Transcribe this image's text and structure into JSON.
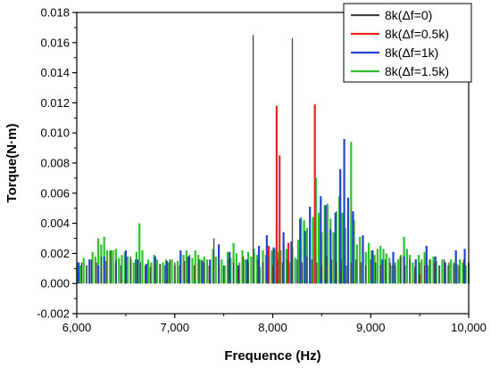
{
  "chart_data": {
    "type": "bar",
    "title": "",
    "xlabel": "Frequence (Hz)",
    "ylabel": "Torque(N·m)",
    "xlim": [
      6000,
      10000
    ],
    "ylim": [
      -0.002,
      0.018
    ],
    "x_ticks": [
      6000,
      7000,
      8000,
      9000,
      10000
    ],
    "x_tick_labels": [
      "6,000",
      "7,000",
      "8,000",
      "9,000",
      "10,000"
    ],
    "y_ticks": [
      -0.002,
      0,
      0.002,
      0.004,
      0.006,
      0.008,
      0.01,
      0.012,
      0.014,
      0.016,
      0.018
    ],
    "y_tick_labels": [
      "-0.002",
      "0.000",
      "0.002",
      "0.004",
      "0.006",
      "0.008",
      "0.010",
      "0.012",
      "0.014",
      "0.016",
      "0.018"
    ],
    "grid": false,
    "legend_position": "top-right",
    "series": [
      {
        "name": "8k(Δf=0)",
        "color": "#444444",
        "x": [
          6000,
          6050,
          6100,
          6150,
          6200,
          6250,
          6300,
          6350,
          6400,
          6450,
          6500,
          6550,
          6600,
          6650,
          6700,
          6750,
          6800,
          6850,
          6900,
          6950,
          7000,
          7050,
          7100,
          7150,
          7200,
          7250,
          7300,
          7350,
          7400,
          7450,
          7500,
          7550,
          7600,
          7650,
          7700,
          7750,
          7800,
          7850,
          7900,
          7950,
          8000,
          8050,
          8100,
          8150,
          8200,
          8250,
          8300,
          8350,
          8400,
          8450,
          8500,
          8550,
          8600,
          8650,
          8700,
          8750,
          8800,
          8850,
          8900,
          8950,
          9000,
          9050,
          9100,
          9150,
          9200,
          9250,
          9300,
          9350,
          9400,
          9450,
          9500,
          9550,
          9600,
          9650,
          9700,
          9750,
          9800,
          9850,
          9900,
          9950,
          10000
        ],
        "values": [
          0.0012,
          0.0014,
          0.0012,
          0.0016,
          0.0014,
          0.0018,
          0.0015,
          0.0022,
          0.0016,
          0.0012,
          0.0014,
          0.0018,
          0.0016,
          0.0014,
          0.0012,
          0.0011,
          0.0014,
          0.0013,
          0.0012,
          0.0016,
          0.0014,
          0.0012,
          0.0015,
          0.0018,
          0.0012,
          0.0016,
          0.0014,
          0.0012,
          0.003,
          0.0014,
          0.0012,
          0.0016,
          0.0014,
          0.0012,
          0.0018,
          0.0014,
          0.0165,
          0.0016,
          0.0014,
          0.0018,
          0.0012,
          0.0016,
          0.0014,
          0.0016,
          0.0163,
          0.0016,
          0.0014,
          0.0018,
          0.0016,
          0.0014,
          0.0012,
          0.0018,
          0.0016,
          0.0014,
          0.0016,
          0.0012,
          0.0014,
          0.0016,
          0.0014,
          0.0012,
          0.0016,
          0.0014,
          0.0012,
          0.0016,
          0.0014,
          0.0012,
          0.0018,
          0.0012,
          0.0016,
          0.0011,
          0.0014,
          0.0012,
          0.0016,
          0.0014,
          0.0012,
          0.0016,
          0.0014,
          0.0013,
          0.0012,
          0.0016,
          0.0014
        ]
      },
      {
        "name": "8k(Δf=0.5k)",
        "color": "#ee2222",
        "x": [
          7960,
          8040,
          8070,
          8160,
          8430,
          9500
        ],
        "values": [
          0.0025,
          0.0118,
          0.0085,
          0.0027,
          0.0119,
          0.0006
        ]
      },
      {
        "name": "8k(Δf=1k)",
        "color": "#2244cc",
        "x": [
          6020,
          6130,
          6220,
          6280,
          6400,
          6500,
          6620,
          6710,
          6800,
          6920,
          7060,
          7140,
          7280,
          7360,
          7450,
          7560,
          7650,
          7740,
          7860,
          7940,
          8010,
          8110,
          8190,
          8280,
          8330,
          8380,
          8490,
          8540,
          8590,
          8640,
          8690,
          8730,
          8770,
          8820,
          8920,
          9020,
          9120,
          9230,
          9340,
          9460,
          9570,
          9660,
          9760,
          9870,
          9960
        ],
        "values": [
          0.0014,
          0.0016,
          0.0012,
          0.0018,
          0.0014,
          0.0022,
          0.0016,
          0.0013,
          0.0018,
          0.0015,
          0.0022,
          0.0018,
          0.0015,
          0.0016,
          0.0026,
          0.0021,
          0.0012,
          0.0016,
          0.0025,
          0.0032,
          0.0024,
          0.0034,
          0.0028,
          0.0043,
          0.0035,
          0.0051,
          0.0058,
          0.0052,
          0.0036,
          0.0047,
          0.0076,
          0.0096,
          0.0057,
          0.0048,
          0.0032,
          0.0022,
          0.0016,
          0.0021,
          0.0018,
          0.0016,
          0.0025,
          0.0018,
          0.0014,
          0.0022,
          0.0023
        ]
      },
      {
        "name": "8k(Δf=1.5k)",
        "color": "#2ec12e",
        "x": [
          6010,
          6040,
          6070,
          6100,
          6130,
          6160,
          6190,
          6220,
          6250,
          6280,
          6310,
          6340,
          6370,
          6400,
          6430,
          6460,
          6490,
          6520,
          6550,
          6580,
          6610,
          6640,
          6670,
          6700,
          6730,
          6760,
          6790,
          6820,
          6850,
          6880,
          6910,
          6940,
          6970,
          7000,
          7030,
          7060,
          7090,
          7120,
          7150,
          7180,
          7210,
          7240,
          7270,
          7300,
          7330,
          7360,
          7390,
          7420,
          7450,
          7480,
          7510,
          7540,
          7570,
          7600,
          7630,
          7660,
          7690,
          7720,
          7750,
          7780,
          7810,
          7840,
          7870,
          7900,
          7930,
          7960,
          7990,
          8020,
          8050,
          8080,
          8110,
          8140,
          8170,
          8200,
          8230,
          8260,
          8290,
          8320,
          8350,
          8380,
          8410,
          8440,
          8470,
          8500,
          8530,
          8560,
          8590,
          8620,
          8650,
          8680,
          8710,
          8740,
          8770,
          8800,
          8830,
          8860,
          8890,
          8920,
          8950,
          8980,
          9010,
          9040,
          9070,
          9100,
          9130,
          9160,
          9190,
          9220,
          9250,
          9280,
          9310,
          9340,
          9370,
          9400,
          9430,
          9460,
          9490,
          9520,
          9550,
          9580,
          9610,
          9640,
          9670,
          9700,
          9730,
          9760,
          9790,
          9820,
          9850,
          9880,
          9910,
          9940,
          9970,
          10000
        ],
        "values": [
          0.0014,
          0.0012,
          0.0017,
          0.0012,
          0.0016,
          0.0021,
          0.0018,
          0.003,
          0.0026,
          0.0031,
          0.0022,
          0.0022,
          0.0022,
          0.0023,
          0.0017,
          0.0019,
          0.0021,
          0.0018,
          0.0016,
          0.0014,
          0.0021,
          0.004,
          0.0022,
          0.0012,
          0.0016,
          0.0014,
          0.0019,
          0.0016,
          0.0013,
          0.0014,
          0.0016,
          0.0014,
          0.0016,
          0.0012,
          0.0015,
          0.0017,
          0.0019,
          0.0022,
          0.0019,
          0.0017,
          0.0022,
          0.0019,
          0.0016,
          0.0018,
          0.0016,
          0.0012,
          0.0023,
          0.0018,
          0.0014,
          0.0016,
          0.0012,
          0.0021,
          0.0017,
          0.0027,
          0.002,
          0.0014,
          0.0022,
          0.0016,
          0.0021,
          0.0018,
          0.0023,
          0.0019,
          0.0011,
          0.0022,
          0.0019,
          0.0017,
          0.0022,
          0.0023,
          0.0021,
          0.0022,
          0.0026,
          0.0023,
          0.0014,
          0.0023,
          0.0017,
          0.0029,
          0.0044,
          0.0042,
          0.0037,
          0.0035,
          0.0044,
          0.007,
          0.0047,
          0.0034,
          0.0052,
          0.0053,
          0.0043,
          0.0034,
          0.0048,
          0.0058,
          0.0047,
          0.0037,
          0.0034,
          0.0094,
          0.0042,
          0.0026,
          0.0031,
          0.0024,
          0.0021,
          0.0027,
          0.0022,
          0.0019,
          0.0023,
          0.0025,
          0.0023,
          0.002,
          0.0017,
          0.0012,
          0.0014,
          0.0016,
          0.0019,
          0.0031,
          0.0023,
          0.0019,
          0.0014,
          0.0016,
          0.0019,
          0.0016,
          0.0021,
          0.0012,
          0.0016,
          0.0018,
          0.0015,
          0.0012,
          0.0016,
          0.0014,
          0.0012,
          0.0016,
          0.0014,
          0.0013,
          0.0016,
          0.0014,
          0.0012,
          0.0014
        ]
      }
    ]
  }
}
